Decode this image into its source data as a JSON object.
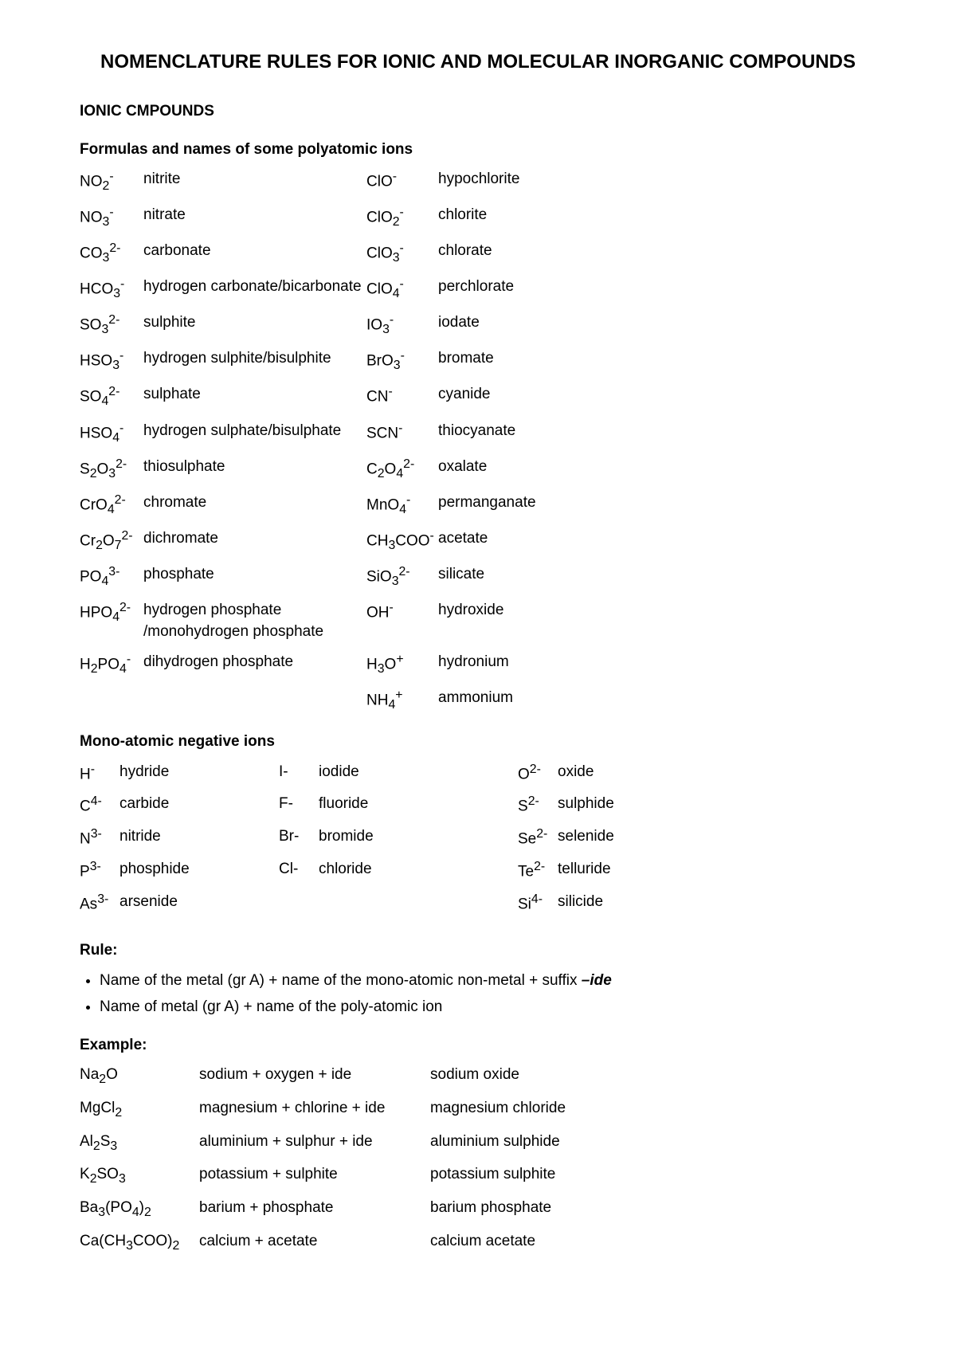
{
  "title": "NOMENCLATURE RULES FOR IONIC AND MOLECULAR INORGANIC COMPOUNDS",
  "section1": "IONIC CMPOUNDS",
  "section2": "Formulas and names of some polyatomic ions",
  "poly": {
    "left": [
      {
        "f": "NO<sub>2</sub><sup>-</sup>",
        "n": "nitrite"
      },
      {
        "f": "NO<sub>3</sub><sup>-</sup>",
        "n": "nitrate"
      },
      {
        "f": "CO<sub>3</sub><sup>2-</sup>",
        "n": "carbonate"
      },
      {
        "f": "HCO<sub>3</sub><sup>-</sup>",
        "n": "hydrogen carbonate/bicarbonate"
      },
      {
        "f": "SO<sub>3</sub><sup>2-</sup>",
        "n": "sulphite"
      },
      {
        "f": "HSO<sub>3</sub><sup>-</sup>",
        "n": "hydrogen sulphite/bisulphite"
      },
      {
        "f": "SO<sub>4</sub><sup>2-</sup>",
        "n": "sulphate"
      },
      {
        "f": "HSO<sub>4</sub><sup>-</sup>",
        "n": "hydrogen sulphate/bisulphate"
      },
      {
        "f": "S<sub>2</sub>O<sub>3</sub><sup>2-</sup>",
        "n": "thiosulphate"
      },
      {
        "f": "CrO<sub>4</sub><sup>2-</sup>",
        "n": "chromate"
      },
      {
        "f": "Cr<sub>2</sub>O<sub>7</sub><sup>2-</sup>",
        "n": "dichromate"
      },
      {
        "f": "PO<sub>4</sub><sup>3-</sup>",
        "n": "phosphate"
      },
      {
        "f": "HPO<sub>4</sub><sup>2-</sup>",
        "n": "hydrogen phosphate /monohydrogen phosphate"
      },
      {
        "f": "H<sub>2</sub>PO<sub>4</sub><sup>-</sup>",
        "n": "dihydrogen phosphate"
      },
      {
        "f": "",
        "n": ""
      }
    ],
    "right": [
      {
        "f": "ClO<sup>-</sup>",
        "n": "hypochlorite"
      },
      {
        "f": "ClO<sub>2</sub><sup>-</sup>",
        "n": "chlorite"
      },
      {
        "f": "ClO<sub>3</sub><sup>-</sup>",
        "n": "chlorate"
      },
      {
        "f": "ClO<sub>4</sub><sup>-</sup>",
        "n": "perchlorate"
      },
      {
        "f": "IO<sub>3</sub><sup>-</sup>",
        "n": "iodate"
      },
      {
        "f": "BrO<sub>3</sub><sup>-</sup>",
        "n": "bromate"
      },
      {
        "f": "CN<sup>-</sup>",
        "n": "cyanide"
      },
      {
        "f": "SCN<sup>-</sup>",
        "n": "thiocyanate"
      },
      {
        "f": "C<sub>2</sub>O<sub>4</sub><sup>2-</sup>",
        "n": "oxalate"
      },
      {
        "f": "MnO<sub>4</sub><sup>-</sup>",
        "n": "permanganate"
      },
      {
        "f": "CH<sub>3</sub>COO<sup>-</sup>",
        "n": "acetate"
      },
      {
        "f": "SiO<sub>3</sub><sup>2-</sup>",
        "n": "silicate"
      },
      {
        "f": "OH<sup>-</sup>",
        "n": "hydroxide"
      },
      {
        "f": "H<sub>3</sub>O<sup>+</sup>",
        "n": "hydronium"
      },
      {
        "f": "NH<sub>4</sub><sup>+</sup>",
        "n": "ammonium"
      }
    ]
  },
  "section3": "Mono-atomic negative ions",
  "mono": [
    {
      "c1f": "H<sup>-</sup>",
      "c1n": "hydride",
      "c2f": "I-",
      "c2n": "iodide",
      "c3f": "O<sup>2-</sup>",
      "c3n": "oxide"
    },
    {
      "c1f": "C<sup>4-</sup>",
      "c1n": "carbide",
      "c2f": "F-",
      "c2n": "fluoride",
      "c3f": "S<sup>2-</sup>",
      "c3n": "sulphide"
    },
    {
      "c1f": "N<sup>3-</sup>",
      "c1n": "nitride",
      "c2f": "Br-",
      "c2n": "bromide",
      "c3f": "Se<sup>2-</sup>",
      "c3n": "selenide"
    },
    {
      "c1f": "P<sup>3-</sup>",
      "c1n": "phosphide",
      "c2f": "Cl-",
      "c2n": "chloride",
      "c3f": "Te<sup>2-</sup>",
      "c3n": "telluride"
    },
    {
      "c1f": "As<sup>3-</sup>",
      "c1n": "arsenide",
      "c2f": "",
      "c2n": "",
      "c3f": "Si<sup>4-</sup>",
      "c3n": "silicide"
    }
  ],
  "rule_heading": "Rule:",
  "rules": [
    "Name of the metal (gr A) + name of the mono-atomic non-metal + suffix <b><i>–ide</i></b>",
    "Name of metal (gr A) + name of the poly-atomic ion"
  ],
  "example_heading": "Example:",
  "examples": [
    {
      "f": "Na<sub>2</sub>O",
      "b": "sodium + oxygen + ide",
      "r": "sodium oxide"
    },
    {
      "f": "MgCl<sub>2</sub>",
      "b": "magnesium + chlorine + ide",
      "r": "magnesium chloride"
    },
    {
      "f": "Al<sub>2</sub>S<sub>3</sub>",
      "b": "aluminium + sulphur + ide",
      "r": "aluminium sulphide"
    },
    {
      "f": "K<sub>2</sub>SO<sub>3</sub>",
      "b": "potassium + sulphite",
      "r": "potassium sulphite"
    },
    {
      "f": "Ba<sub>3</sub>(PO<sub>4</sub>)<sub>2</sub>",
      "b": "barium + phosphate",
      "r": "barium phosphate"
    },
    {
      "f": "Ca(CH<sub>3</sub>COO)<sub>2</sub>",
      "b": "calcium + acetate",
      "r": "calcium acetate"
    }
  ]
}
